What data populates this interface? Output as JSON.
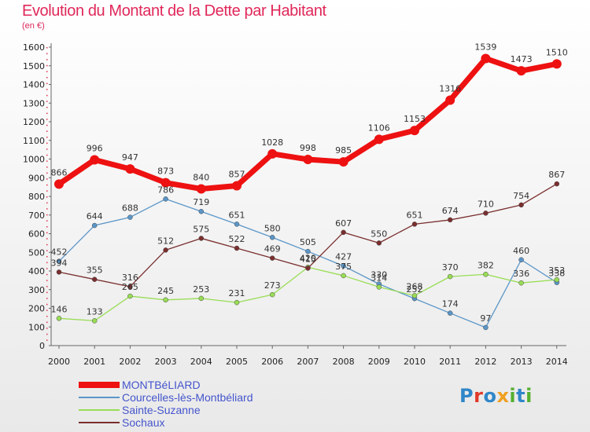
{
  "header": {
    "title": "Evolution du Montant de la Dette par Habitant",
    "subtitle": "(en €)"
  },
  "logo": {
    "text": "Proxiti",
    "letters": [
      {
        "ch": "P",
        "color": "#2f86c8"
      },
      {
        "ch": "r",
        "color": "#e03a2a"
      },
      {
        "ch": "o",
        "color": "#2f86c8"
      },
      {
        "ch": "x",
        "color": "#f0a020"
      },
      {
        "ch": "i",
        "color": "#55b030"
      },
      {
        "ch": "t",
        "color": "#2f86c8"
      },
      {
        "ch": "i",
        "color": "#55b030"
      }
    ]
  },
  "chart_data": {
    "type": "line",
    "title": "Evolution du Montant de la Dette par Habitant",
    "subtitle": "(en €)",
    "x": [
      "2000",
      "2001",
      "2002",
      "2003",
      "2004",
      "2005",
      "2006",
      "2007",
      "2008",
      "2009",
      "2010",
      "2011",
      "2012",
      "2013",
      "2014"
    ],
    "ylim": [
      0,
      1600
    ],
    "yticks": [
      0,
      100,
      200,
      300,
      400,
      500,
      600,
      700,
      800,
      900,
      1000,
      1100,
      1200,
      1300,
      1400,
      1500,
      1600
    ],
    "grid": false,
    "legend_position": "bottom-left",
    "series": [
      {
        "name": "MONTBéLIARD",
        "color": "#ee1111",
        "values": [
          866,
          996,
          947,
          873,
          840,
          857,
          1028,
          998,
          985,
          1106,
          1153,
          1316,
          1539,
          1473,
          1510
        ]
      },
      {
        "name": "Courcelles-lès-Montbéliard",
        "color": "#5a96c8",
        "values": [
          452,
          644,
          688,
          786,
          719,
          651,
          580,
          505,
          427,
          330,
          252,
          174,
          97,
          460,
          338
        ]
      },
      {
        "name": "Sainte-Suzanne",
        "color": "#99dd55",
        "values": [
          146,
          133,
          265,
          245,
          253,
          231,
          273,
          420,
          375,
          314,
          268,
          370,
          382,
          336,
          353
        ]
      },
      {
        "name": "Sochaux",
        "color": "#7a2e2e",
        "values": [
          394,
          355,
          316,
          512,
          575,
          522,
          469,
          415,
          607,
          550,
          651,
          674,
          710,
          754,
          867
        ]
      }
    ]
  }
}
